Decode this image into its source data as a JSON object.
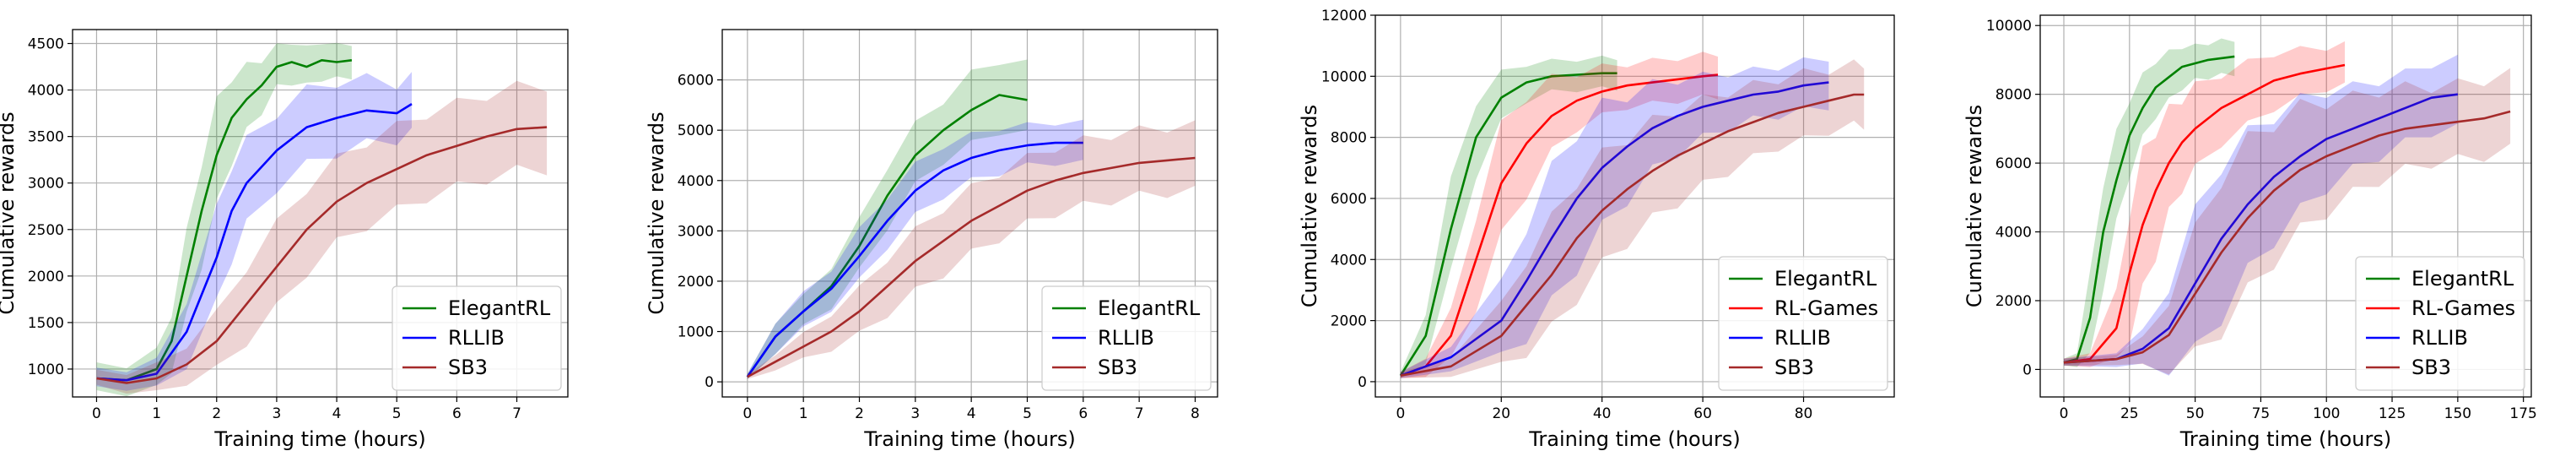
{
  "colors": {
    "ElegantRL": "#008000",
    "RL-Games": "#ff0000",
    "RLLIB": "#0000ff",
    "SB3": "#a52a2a",
    "grid": "#b0b0b0"
  },
  "chart_data": [
    {
      "type": "line",
      "title": "",
      "xlabel": "Training time (hours)",
      "ylabel": "Cumulative rewards",
      "xlim": [
        -0.4,
        7.85
      ],
      "ylim": [
        700,
        4650
      ],
      "xticks": [
        "0",
        "1",
        "2",
        "3",
        "4",
        "5",
        "6",
        "7"
      ],
      "yticks": [
        "1000",
        "1500",
        "2000",
        "2500",
        "3000",
        "3500",
        "4000",
        "4500"
      ],
      "grid": true,
      "legend_position": "bottom-right",
      "series": [
        {
          "name": "ElegantRL",
          "x": [
            0,
            0.5,
            1,
            1.25,
            1.5,
            1.75,
            2,
            2.25,
            2.5,
            2.75,
            3,
            3.25,
            3.5,
            3.75,
            4,
            4.25
          ],
          "y": [
            900,
            880,
            1000,
            1300,
            2000,
            2700,
            3300,
            3700,
            3900,
            4050,
            4250,
            4300,
            4250,
            4320,
            4300,
            4320
          ],
          "band": [
            150,
            150,
            200,
            300,
            450,
            550,
            550,
            450,
            350,
            280,
            220,
            220,
            200,
            200,
            180,
            180
          ]
        },
        {
          "name": "RLLIB",
          "x": [
            0,
            0.5,
            1,
            1.5,
            2,
            2.25,
            2.5,
            3,
            3.5,
            4,
            4.5,
            5,
            5.25
          ],
          "y": [
            900,
            880,
            950,
            1400,
            2200,
            2700,
            3000,
            3350,
            3600,
            3700,
            3780,
            3750,
            3850
          ],
          "band": [
            100,
            100,
            150,
            350,
            500,
            500,
            450,
            400,
            400,
            380,
            350,
            300,
            300
          ]
        },
        {
          "name": "SB3",
          "x": [
            0,
            0.5,
            1,
            1.5,
            2,
            2.5,
            3,
            3.5,
            4,
            4.5,
            5,
            5.5,
            6,
            6.5,
            7,
            7.5
          ],
          "y": [
            900,
            850,
            900,
            1050,
            1300,
            1700,
            2100,
            2500,
            2800,
            3000,
            3150,
            3300,
            3400,
            3500,
            3580,
            3600
          ],
          "band": [
            80,
            100,
            150,
            200,
            300,
            400,
            450,
            450,
            450,
            450,
            450,
            450,
            450,
            450,
            450,
            450
          ]
        }
      ]
    },
    {
      "type": "line",
      "title": "",
      "xlabel": "Training time (hours)",
      "ylabel": "Cumulative rewards",
      "xlim": [
        -0.45,
        8.4
      ],
      "ylim": [
        -300,
        7000
      ],
      "xticks": [
        "0",
        "1",
        "2",
        "3",
        "4",
        "5",
        "6",
        "7",
        "8"
      ],
      "yticks": [
        "0",
        "1000",
        "2000",
        "3000",
        "4000",
        "5000",
        "6000"
      ],
      "grid": true,
      "legend_position": "bottom-right",
      "series": [
        {
          "name": "ElegantRL",
          "x": [
            0,
            0.5,
            1,
            1.5,
            2,
            2.5,
            3,
            3.5,
            4,
            4.5,
            5
          ],
          "y": [
            100,
            900,
            1400,
            1900,
            2700,
            3700,
            4500,
            5000,
            5400,
            5700,
            5600
          ],
          "band": [
            50,
            300,
            300,
            400,
            500,
            600,
            600,
            600,
            700,
            700,
            700
          ]
        },
        {
          "name": "RLLIB",
          "x": [
            0,
            0.5,
            1,
            1.5,
            2,
            2.5,
            3,
            3.5,
            4,
            4.5,
            5,
            5.5,
            6
          ],
          "y": [
            100,
            900,
            1400,
            1850,
            2500,
            3200,
            3800,
            4200,
            4450,
            4600,
            4700,
            4750,
            4750
          ],
          "band": [
            50,
            300,
            350,
            400,
            500,
            500,
            500,
            500,
            450,
            450,
            400,
            400,
            400
          ]
        },
        {
          "name": "SB3",
          "x": [
            0,
            0.5,
            1,
            1.5,
            2,
            2.5,
            3,
            3.5,
            4,
            4.5,
            5,
            5.5,
            6,
            6.5,
            7,
            7.5,
            8
          ],
          "y": [
            100,
            400,
            700,
            1000,
            1400,
            1900,
            2400,
            2800,
            3200,
            3500,
            3800,
            4000,
            4150,
            4250,
            4350,
            4400,
            4450
          ],
          "band": [
            50,
            150,
            250,
            350,
            450,
            550,
            600,
            650,
            650,
            650,
            650,
            650,
            650,
            650,
            650,
            650,
            650
          ]
        }
      ]
    },
    {
      "type": "line",
      "title": "",
      "xlabel": "Training time (hours)",
      "ylabel": "Cumulative rewards",
      "xlim": [
        -5,
        98
      ],
      "ylim": [
        -500,
        12000
      ],
      "xticks": [
        "0",
        "20",
        "40",
        "60",
        "80"
      ],
      "yticks": [
        "0",
        "2000",
        "4000",
        "6000",
        "8000",
        "10000",
        "12000"
      ],
      "grid": true,
      "legend_position": "bottom-right",
      "series": [
        {
          "name": "ElegantRL",
          "x": [
            0,
            5,
            10,
            15,
            20,
            25,
            30,
            35,
            40,
            43
          ],
          "y": [
            200,
            1500,
            5000,
            8000,
            9300,
            9800,
            10000,
            10050,
            10100,
            10100
          ],
          "band": [
            100,
            800,
            1500,
            1200,
            800,
            600,
            500,
            500,
            500,
            500
          ]
        },
        {
          "name": "RL-Games",
          "x": [
            0,
            5,
            10,
            15,
            20,
            25,
            30,
            35,
            40,
            45,
            50,
            55,
            60,
            63
          ],
          "y": [
            200,
            500,
            1500,
            4000,
            6500,
            7800,
            8700,
            9200,
            9500,
            9700,
            9800,
            9900,
            10000,
            10050
          ],
          "band": [
            100,
            300,
            800,
            1500,
            1800,
            1600,
            1200,
            900,
            800,
            700,
            700,
            700,
            700,
            700
          ]
        },
        {
          "name": "RLLIB",
          "x": [
            0,
            10,
            20,
            25,
            30,
            35,
            40,
            45,
            50,
            55,
            60,
            65,
            70,
            75,
            80,
            85
          ],
          "y": [
            200,
            800,
            2000,
            3300,
            4700,
            6000,
            7000,
            7700,
            8300,
            8700,
            9000,
            9200,
            9400,
            9500,
            9700,
            9800
          ],
          "band": [
            100,
            400,
            1200,
            1800,
            2200,
            2200,
            2000,
            1700,
            1400,
            1200,
            1000,
            900,
            800,
            800,
            800,
            800
          ]
        },
        {
          "name": "SB3",
          "x": [
            0,
            10,
            20,
            25,
            30,
            35,
            40,
            45,
            50,
            55,
            60,
            65,
            70,
            75,
            80,
            85,
            90,
            92
          ],
          "y": [
            200,
            500,
            1500,
            2500,
            3500,
            4700,
            5600,
            6300,
            6900,
            7400,
            7800,
            8200,
            8500,
            8800,
            9000,
            9200,
            9400,
            9400
          ],
          "band": [
            100,
            300,
            1000,
            1500,
            1800,
            1900,
            1800,
            1700,
            1600,
            1500,
            1400,
            1300,
            1200,
            1100,
            1100,
            1000,
            1000,
            1000
          ]
        }
      ]
    },
    {
      "type": "line",
      "title": "",
      "xlabel": "Training time (hours)",
      "ylabel": "Cumulative rewards",
      "xlim": [
        -9,
        178
      ],
      "ylim": [
        -800,
        10300
      ],
      "xticks": [
        "0",
        "25",
        "50",
        "75",
        "100",
        "125",
        "150",
        "175"
      ],
      "yticks": [
        "0",
        "2000",
        "4000",
        "6000",
        "8000",
        "10000"
      ],
      "grid": true,
      "legend_position": "bottom-right",
      "series": [
        {
          "name": "ElegantRL",
          "x": [
            0,
            5,
            10,
            15,
            20,
            25,
            30,
            35,
            40,
            45,
            50,
            55,
            60,
            65
          ],
          "y": [
            200,
            300,
            1500,
            4000,
            5500,
            6800,
            7600,
            8200,
            8500,
            8800,
            8900,
            9000,
            9050,
            9100
          ],
          "band": [
            100,
            200,
            1200,
            1500,
            1300,
            1100,
            900,
            800,
            700,
            600,
            500,
            500,
            500,
            500
          ]
        },
        {
          "name": "RL-Games",
          "x": [
            0,
            10,
            20,
            25,
            30,
            35,
            40,
            45,
            50,
            60,
            70,
            80,
            90,
            100,
            107
          ],
          "y": [
            200,
            300,
            1200,
            2800,
            4200,
            5200,
            6000,
            6600,
            7000,
            7600,
            8000,
            8400,
            8600,
            8750,
            8850
          ],
          "band": [
            100,
            200,
            1000,
            1800,
            2000,
            1800,
            1500,
            1300,
            1200,
            1000,
            900,
            800,
            700,
            600,
            600
          ]
        },
        {
          "name": "RLLIB",
          "x": [
            0,
            20,
            30,
            40,
            50,
            60,
            70,
            80,
            90,
            100,
            110,
            120,
            130,
            140,
            150
          ],
          "y": [
            200,
            300,
            600,
            1200,
            2500,
            3800,
            4800,
            5600,
            6200,
            6700,
            7000,
            7300,
            7600,
            7900,
            8000
          ],
          "band": [
            100,
            200,
            500,
            1200,
            2000,
            2200,
            2000,
            1800,
            1600,
            1400,
            1200,
            1100,
            1000,
            1000,
            1000
          ]
        },
        {
          "name": "SB3",
          "x": [
            0,
            20,
            30,
            40,
            50,
            60,
            70,
            80,
            90,
            100,
            110,
            120,
            130,
            140,
            150,
            160,
            170
          ],
          "y": [
            200,
            300,
            500,
            1000,
            2200,
            3400,
            4400,
            5200,
            5800,
            6200,
            6500,
            6800,
            7000,
            7100,
            7200,
            7300,
            7500
          ],
          "band": [
            100,
            150,
            400,
            1000,
            1800,
            2200,
            2200,
            2000,
            1800,
            1600,
            1400,
            1300,
            1200,
            1100,
            1100,
            1100,
            1100
          ]
        }
      ]
    }
  ]
}
